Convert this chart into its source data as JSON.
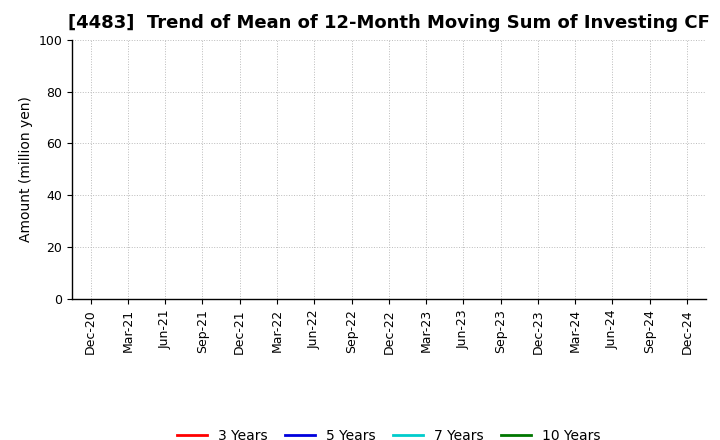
{
  "title": "[4483]  Trend of Mean of 12-Month Moving Sum of Investing CF",
  "ylabel": "Amount (million yen)",
  "ylim": [
    0,
    100
  ],
  "yticks": [
    0,
    20,
    40,
    60,
    80,
    100
  ],
  "x_labels": [
    "Dec-20",
    "Mar-21",
    "Jun-21",
    "Sep-21",
    "Dec-21",
    "Mar-22",
    "Jun-22",
    "Sep-22",
    "Dec-22",
    "Mar-23",
    "Jun-23",
    "Sep-23",
    "Dec-23",
    "Mar-24",
    "Jun-24",
    "Sep-24",
    "Dec-24"
  ],
  "legend_entries": [
    {
      "label": "3 Years",
      "color": "#ff0000"
    },
    {
      "label": "5 Years",
      "color": "#0000dd"
    },
    {
      "label": "7 Years",
      "color": "#00cccc"
    },
    {
      "label": "10 Years",
      "color": "#007700"
    }
  ],
  "background_color": "#ffffff",
  "grid_color": "#bbbbbb",
  "title_fontsize": 13,
  "axis_label_fontsize": 10,
  "tick_fontsize": 9,
  "legend_fontsize": 10
}
